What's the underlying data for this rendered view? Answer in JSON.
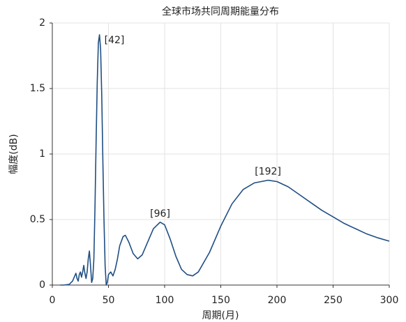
{
  "chart_data": {
    "type": "line",
    "title": "全球市场共同周期能量分布",
    "xlabel": "周期(月)",
    "ylabel": "幅度(dB)",
    "x": [
      7,
      10,
      15,
      18,
      20,
      21,
      22,
      23,
      24,
      25,
      26,
      27,
      28,
      29,
      30,
      31,
      32,
      33,
      34,
      35,
      36,
      37,
      38,
      39,
      40,
      41,
      42,
      43,
      44,
      45,
      46,
      47,
      48,
      49,
      50,
      52,
      54,
      56,
      58,
      60,
      63,
      65,
      68,
      72,
      76,
      80,
      85,
      90,
      96,
      100,
      105,
      110,
      115,
      120,
      125,
      130,
      140,
      150,
      160,
      170,
      180,
      192,
      200,
      210,
      220,
      230,
      240,
      250,
      260,
      270,
      280,
      290,
      300
    ],
    "series": [
      {
        "name": "幅度",
        "color": "#1f4e84",
        "values": [
          0,
          0,
          0.005,
          0.03,
          0.07,
          0.09,
          0.05,
          0.03,
          0.08,
          0.1,
          0.06,
          0.1,
          0.15,
          0.09,
          0.05,
          0.1,
          0.2,
          0.26,
          0.15,
          0.02,
          0.05,
          0.2,
          0.6,
          1.1,
          1.55,
          1.85,
          1.91,
          1.8,
          1.45,
          0.95,
          0.5,
          0.15,
          0.0,
          0.02,
          0.08,
          0.1,
          0.07,
          0.12,
          0.2,
          0.3,
          0.37,
          0.38,
          0.33,
          0.24,
          0.2,
          0.23,
          0.33,
          0.43,
          0.48,
          0.46,
          0.35,
          0.22,
          0.12,
          0.08,
          0.07,
          0.1,
          0.25,
          0.45,
          0.62,
          0.73,
          0.78,
          0.8,
          0.79,
          0.75,
          0.69,
          0.63,
          0.57,
          0.52,
          0.47,
          0.43,
          0.39,
          0.36,
          0.335
        ]
      }
    ],
    "annotations": [
      {
        "text": "[42]",
        "x": 42,
        "y": 1.91
      },
      {
        "text": "[96]",
        "x": 96,
        "y": 0.48
      },
      {
        "text": "[192]",
        "x": 192,
        "y": 0.8
      }
    ],
    "xlim": [
      0,
      300
    ],
    "xticks": [
      0,
      50,
      100,
      150,
      200,
      250,
      300
    ],
    "ylim": [
      0,
      2
    ],
    "yticks": [
      0,
      0.5,
      1,
      1.5,
      2
    ],
    "grid": true
  }
}
